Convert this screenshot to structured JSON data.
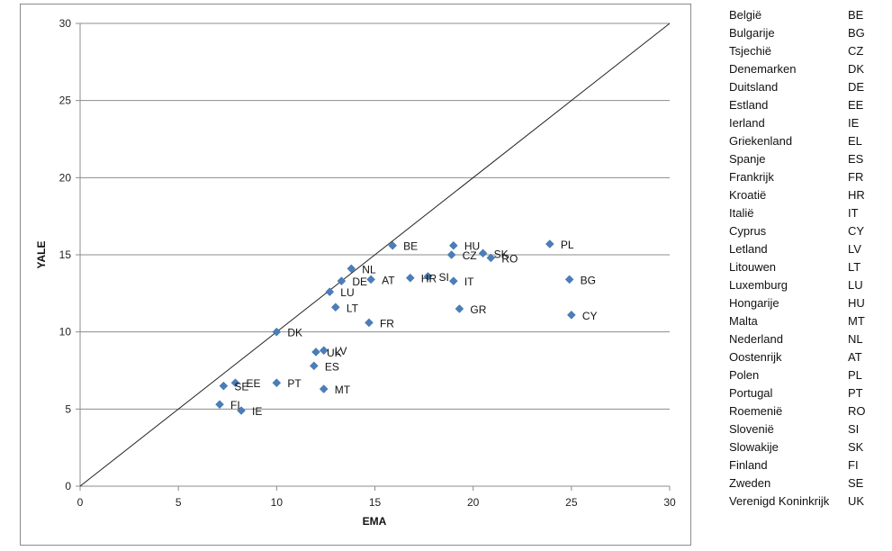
{
  "chart_data": {
    "type": "scatter",
    "title": "",
    "xlabel": "EMA",
    "ylabel": "YALE",
    "xlim": [
      0,
      30
    ],
    "ylim": [
      0,
      30
    ],
    "x_ticks": [
      "0",
      "5",
      "10",
      "15",
      "20",
      "25",
      "30"
    ],
    "y_ticks": [
      "0",
      "5",
      "10",
      "15",
      "20",
      "25",
      "30"
    ],
    "grid": "horizontal",
    "reference_line": [
      [
        0,
        0
      ],
      [
        30,
        30
      ]
    ],
    "marker": "diamond",
    "marker_color": "#4a7ebb",
    "points": [
      {
        "label": "BE",
        "x": 15.9,
        "y": 15.6
      },
      {
        "label": "BG",
        "x": 24.9,
        "y": 13.4
      },
      {
        "label": "CZ",
        "x": 18.9,
        "y": 15.0
      },
      {
        "label": "DK",
        "x": 10.0,
        "y": 10.0
      },
      {
        "label": "DE",
        "x": 13.3,
        "y": 13.3
      },
      {
        "label": "EE",
        "x": 7.9,
        "y": 6.7
      },
      {
        "label": "IE",
        "x": 8.2,
        "y": 4.9
      },
      {
        "label": "GR",
        "x": 19.3,
        "y": 11.5
      },
      {
        "label": "ES",
        "x": 11.9,
        "y": 7.8
      },
      {
        "label": "FR",
        "x": 14.7,
        "y": 10.6
      },
      {
        "label": "HR",
        "x": 16.8,
        "y": 13.5
      },
      {
        "label": "IT",
        "x": 19.0,
        "y": 13.3
      },
      {
        "label": "CY",
        "x": 25.0,
        "y": 11.1
      },
      {
        "label": "LV",
        "x": 12.4,
        "y": 8.8
      },
      {
        "label": "LT",
        "x": 13.0,
        "y": 11.6
      },
      {
        "label": "LU",
        "x": 12.7,
        "y": 12.6
      },
      {
        "label": "HU",
        "x": 19.0,
        "y": 15.6
      },
      {
        "label": "MT",
        "x": 12.4,
        "y": 6.3
      },
      {
        "label": "NL",
        "x": 13.8,
        "y": 14.1
      },
      {
        "label": "AT",
        "x": 14.8,
        "y": 13.4
      },
      {
        "label": "PL",
        "x": 23.9,
        "y": 15.7
      },
      {
        "label": "PT",
        "x": 10.0,
        "y": 6.7
      },
      {
        "label": "RO",
        "x": 20.9,
        "y": 14.8
      },
      {
        "label": "SI",
        "x": 17.7,
        "y": 13.6
      },
      {
        "label": "SK",
        "x": 20.5,
        "y": 15.1
      },
      {
        "label": "FI",
        "x": 7.1,
        "y": 5.3
      },
      {
        "label": "SE",
        "x": 7.3,
        "y": 6.5
      },
      {
        "label": "UK",
        "x": 12.0,
        "y": 8.7
      }
    ]
  },
  "legend": [
    {
      "name": "België",
      "code": "BE"
    },
    {
      "name": "Bulgarije",
      "code": "BG"
    },
    {
      "name": "Tsjechië",
      "code": "CZ"
    },
    {
      "name": "Denemarken",
      "code": "DK"
    },
    {
      "name": "Duitsland",
      "code": "DE"
    },
    {
      "name": "Estland",
      "code": "EE"
    },
    {
      "name": "Ierland",
      "code": "IE"
    },
    {
      "name": "Griekenland",
      "code": "EL"
    },
    {
      "name": "Spanje",
      "code": "ES"
    },
    {
      "name": "Frankrijk",
      "code": "FR"
    },
    {
      "name": "Kroatië",
      "code": "HR"
    },
    {
      "name": "Italië",
      "code": "IT"
    },
    {
      "name": "Cyprus",
      "code": "CY"
    },
    {
      "name": "Letland",
      "code": "LV"
    },
    {
      "name": "Litouwen",
      "code": "LT"
    },
    {
      "name": "Luxemburg",
      "code": "LU"
    },
    {
      "name": "Hongarije",
      "code": "HU"
    },
    {
      "name": "Malta",
      "code": "MT"
    },
    {
      "name": "Nederland",
      "code": "NL"
    },
    {
      "name": "Oostenrijk",
      "code": "AT"
    },
    {
      "name": "Polen",
      "code": "PL"
    },
    {
      "name": "Portugal",
      "code": "PT"
    },
    {
      "name": "Roemenië",
      "code": "RO"
    },
    {
      "name": "Slovenië",
      "code": "SI"
    },
    {
      "name": "Slowakije",
      "code": "SK"
    },
    {
      "name": "Finland",
      "code": "FI"
    },
    {
      "name": "Zweden",
      "code": "SE"
    },
    {
      "name": "Verenigd Koninkrijk",
      "code": "UK"
    }
  ]
}
